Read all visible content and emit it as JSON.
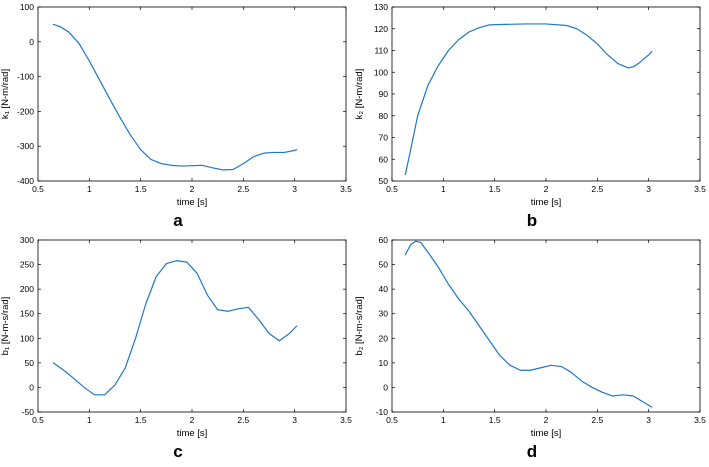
{
  "chart_data": [
    {
      "type": "line",
      "panel_label": "a",
      "xlabel": "time [s]",
      "ylabel": "k₁ [N-m/rad]",
      "xlim": [
        0.5,
        3.5
      ],
      "ylim": [
        -400,
        100
      ],
      "xticks": [
        "0.5",
        "1",
        "1.5",
        "2",
        "2.5",
        "3",
        "3.5"
      ],
      "yticks": [
        "100",
        "0",
        "-100",
        "-200",
        "-300",
        "-400"
      ],
      "line_color": "#1f77c8",
      "series": [
        {
          "x": [
            0.65,
            0.72,
            0.8,
            0.9,
            1.0,
            1.1,
            1.2,
            1.3,
            1.4,
            1.5,
            1.6,
            1.7,
            1.8,
            1.9,
            2.0,
            2.1,
            2.2,
            2.3,
            2.4,
            2.5,
            2.6,
            2.7,
            2.8,
            2.9,
            3.0,
            3.02
          ],
          "values": [
            50,
            43,
            28,
            -5,
            -55,
            -110,
            -165,
            -218,
            -268,
            -310,
            -338,
            -350,
            -355,
            -357,
            -356,
            -355,
            -362,
            -368,
            -367,
            -350,
            -330,
            -320,
            -318,
            -318,
            -312,
            -310
          ]
        }
      ]
    },
    {
      "type": "line",
      "panel_label": "b",
      "xlabel": "time [s]",
      "ylabel": "k₂ [N-m/rad]",
      "xlim": [
        0.5,
        3.5
      ],
      "ylim": [
        50,
        130
      ],
      "xticks": [
        "0.5",
        "1",
        "1.5",
        "2",
        "2.5",
        "3",
        "3.5"
      ],
      "yticks": [
        "130",
        "120",
        "110",
        "100",
        "90",
        "80",
        "70",
        "60",
        "50"
      ],
      "line_color": "#1f77c8",
      "series": [
        {
          "x": [
            0.63,
            0.68,
            0.75,
            0.85,
            0.95,
            1.05,
            1.15,
            1.25,
            1.35,
            1.45,
            1.6,
            1.8,
            2.0,
            2.2,
            2.3,
            2.4,
            2.5,
            2.6,
            2.7,
            2.8,
            2.85,
            2.9,
            3.0,
            3.03
          ],
          "values": [
            53,
            64,
            80,
            94,
            103,
            110,
            115,
            118.5,
            120.5,
            121.8,
            122,
            122.2,
            122.2,
            121.5,
            120,
            117,
            113,
            108,
            104,
            102,
            102.5,
            104,
            108,
            109.5
          ]
        }
      ]
    },
    {
      "type": "line",
      "panel_label": "c",
      "xlabel": "time [s]",
      "ylabel": "b₁ [N-m-s/rad]",
      "xlim": [
        0.5,
        3.5
      ],
      "ylim": [
        -50,
        300
      ],
      "xticks": [
        "0.5",
        "1",
        "1.5",
        "2",
        "2.5",
        "3",
        "3.5"
      ],
      "yticks": [
        "300",
        "250",
        "200",
        "150",
        "100",
        "50",
        "0",
        "-50"
      ],
      "line_color": "#1f77c8",
      "series": [
        {
          "x": [
            0.65,
            0.75,
            0.85,
            0.95,
            1.05,
            1.15,
            1.25,
            1.35,
            1.45,
            1.55,
            1.65,
            1.75,
            1.85,
            1.95,
            2.05,
            2.15,
            2.25,
            2.35,
            2.45,
            2.55,
            2.65,
            2.75,
            2.85,
            2.95,
            3.02
          ],
          "values": [
            50,
            35,
            18,
            0,
            -15,
            -15,
            5,
            40,
            100,
            170,
            225,
            252,
            258,
            255,
            232,
            188,
            158,
            155,
            160,
            163,
            138,
            110,
            95,
            110,
            125
          ]
        }
      ]
    },
    {
      "type": "line",
      "panel_label": "d",
      "xlabel": "time [s]",
      "ylabel": "b₂ [N-m-s/rad]",
      "xlim": [
        0.5,
        3.5
      ],
      "ylim": [
        -10,
        60
      ],
      "xticks": [
        "0.5",
        "1",
        "1.5",
        "2",
        "2.5",
        "3",
        "3.5"
      ],
      "yticks": [
        "60",
        "50",
        "40",
        "30",
        "20",
        "10",
        "0",
        "-10"
      ],
      "line_color": "#1f77c8",
      "series": [
        {
          "x": [
            0.63,
            0.68,
            0.73,
            0.78,
            0.85,
            0.95,
            1.05,
            1.15,
            1.25,
            1.35,
            1.45,
            1.55,
            1.65,
            1.75,
            1.85,
            1.95,
            2.05,
            2.15,
            2.25,
            2.35,
            2.45,
            2.55,
            2.65,
            2.75,
            2.85,
            2.95,
            3.03
          ],
          "values": [
            54,
            58,
            59.5,
            59,
            55,
            49,
            42,
            36,
            31,
            25,
            19,
            13,
            9,
            7,
            7,
            8,
            9,
            8.5,
            6,
            2.5,
            0,
            -2,
            -3.5,
            -3,
            -3.5,
            -6,
            -8
          ]
        }
      ]
    }
  ]
}
